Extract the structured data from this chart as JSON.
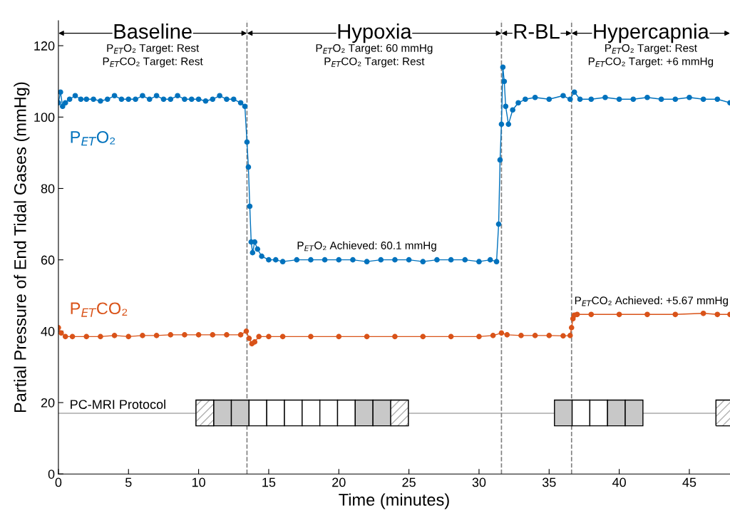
{
  "chart_data": {
    "type": "line",
    "xlabel": "Time (minutes)",
    "ylabel": "Partial Pressure of End Tidal Gases (mmHg)",
    "xlim": [
      0,
      47.9
    ],
    "ylim": [
      0,
      127
    ],
    "xticks": [
      0,
      5,
      10,
      15,
      20,
      25,
      30,
      35,
      40,
      45
    ],
    "yticks": [
      0,
      20,
      40,
      60,
      80,
      100,
      120
    ],
    "grid": false,
    "legend": false,
    "marker": "circle",
    "line_style": "solid",
    "series": [
      {
        "name": "P$_{ET}$O₂",
        "color": "#0072bd",
        "x": [
          0,
          0.15,
          0.3,
          0.5,
          0.8,
          1.2,
          1.6,
          2,
          2.5,
          3,
          3.5,
          4,
          4.5,
          5,
          5.5,
          6,
          6.5,
          7,
          7.5,
          8,
          8.5,
          9,
          9.5,
          10,
          10.5,
          11,
          11.5,
          12,
          12.5,
          13,
          13.3,
          13.45,
          13.55,
          13.65,
          13.75,
          13.85,
          14,
          14.2,
          14.5,
          15,
          15.5,
          16,
          17,
          18,
          19,
          20,
          21,
          22,
          23,
          24,
          25,
          26,
          27,
          28,
          29,
          30,
          30.8,
          31.25,
          31.4,
          31.5,
          31.6,
          31.7,
          31.8,
          31.9,
          32.1,
          32.4,
          32.8,
          33.3,
          34,
          35,
          36,
          36.5,
          36.8,
          37.2,
          38,
          39,
          40,
          41,
          42,
          43,
          44,
          45,
          46,
          47,
          47.9
        ],
        "values": [
          104,
          107,
          103,
          104,
          105,
          106,
          105,
          105,
          105,
          104.5,
          105,
          106,
          105,
          105,
          105,
          106,
          105,
          106,
          105,
          105,
          106,
          105,
          105,
          105,
          104.5,
          105,
          106,
          105,
          105,
          104,
          103,
          93,
          86,
          75,
          65,
          62,
          65,
          63,
          61,
          60,
          60,
          59.5,
          60,
          60,
          60,
          60,
          60,
          59.5,
          60,
          60,
          60,
          59.5,
          60,
          60,
          60,
          59.5,
          60,
          59.5,
          70,
          88,
          98,
          114,
          110,
          103,
          98,
          102,
          104,
          105,
          105.5,
          105,
          106,
          105,
          107,
          105,
          105,
          105.5,
          105,
          105,
          105.5,
          105,
          105,
          105.5,
          105,
          105,
          104
        ]
      },
      {
        "name": "P$_{ET}$CO₂",
        "color": "#d95319",
        "x": [
          0,
          0.2,
          0.5,
          1,
          2,
          3,
          4,
          5,
          6,
          7,
          8,
          9,
          10,
          11,
          12,
          13,
          13.4,
          13.6,
          13.8,
          14,
          14.3,
          15,
          16,
          18,
          20,
          22,
          24,
          26,
          28,
          30,
          31,
          31.6,
          32,
          33,
          34,
          35,
          36,
          36.5,
          36.6,
          36.7,
          36.8,
          37,
          38,
          40,
          42,
          44,
          46,
          47,
          47.9
        ],
        "values": [
          41,
          39.5,
          38.5,
          38.5,
          38.5,
          38.5,
          38.8,
          38.5,
          38.8,
          38.8,
          39,
          39,
          39,
          39,
          39,
          39,
          40,
          38,
          36.5,
          37,
          38.5,
          38.5,
          38.5,
          38.5,
          38.5,
          38.5,
          38.5,
          38.5,
          38.5,
          38.5,
          38.8,
          39.5,
          39,
          38.8,
          38.8,
          38.8,
          38.7,
          38.8,
          41,
          43.5,
          44.5,
          44.7,
          44.7,
          44.7,
          44.7,
          44.7,
          45,
          44.7,
          44.7
        ]
      }
    ],
    "ref_lines": [
      {
        "axis": "x",
        "value": 13.45,
        "color": "#808080",
        "line_style": "dashed"
      },
      {
        "axis": "x",
        "value": 31.6,
        "color": "#808080",
        "line_style": "dashed"
      },
      {
        "axis": "x",
        "value": 36.6,
        "color": "#808080",
        "line_style": "dashed"
      },
      {
        "axis": "y",
        "value": 17,
        "label": "PC-MRI Protocol",
        "color": "#808080",
        "line_style": "solid"
      }
    ],
    "annotations": [
      "Baseline",
      "Hypoxia",
      "R-BL",
      "Hypercapnia",
      "P$_{ET}$O₂ Target: Rest\nP$_{ET}$CO₂ Target: Rest",
      "P$_{ET}$O₂ Target: 60 mmHg\nP$_{ET}$CO₂ Target: Rest",
      "P$_{ET}$O₂ Target: Rest\nP$_{ET}$CO₂ Target: +6 mmHg",
      {
        "text": "P$_{ET}$O₂ Achieved: 60.1 mmHg",
        "x": 22,
        "y": 60.1
      },
      {
        "text": "P$_{ET}$CO₂ Achieved: +5.67 mmHg",
        "x": 42.3,
        "y": 44.7
      }
    ]
  }
}
